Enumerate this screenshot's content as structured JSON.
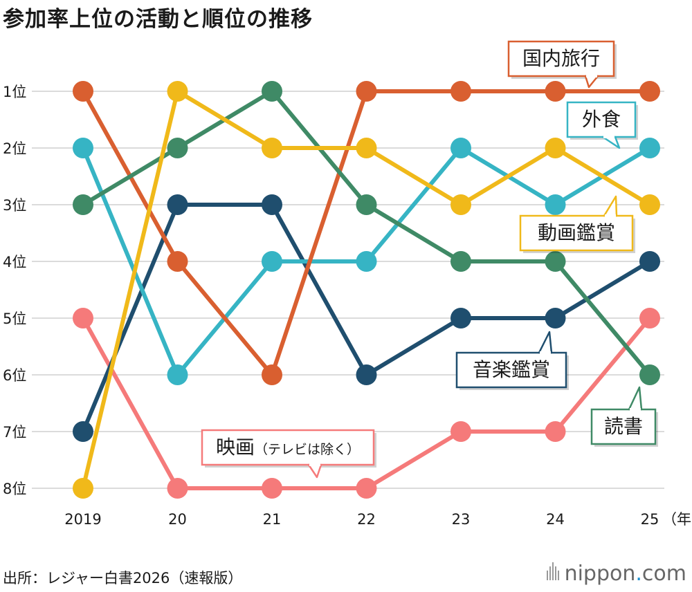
{
  "title": "参加率上位の活動と順位の推移",
  "source": "出所：レジャー白書2026（速報版）",
  "brand": {
    "name": "nippon",
    "dot": ".",
    "tld": "com"
  },
  "chart_data": {
    "type": "line",
    "title": "参加率上位の活動と順位の推移",
    "x": [
      "2019",
      "20",
      "21",
      "22",
      "23",
      "24",
      "25"
    ],
    "x_unit": "（年）",
    "y_ticks": [
      "1位",
      "2位",
      "3位",
      "4位",
      "5位",
      "6位",
      "7位",
      "8位"
    ],
    "ylim": [
      1,
      8
    ],
    "y_inverted": true,
    "grid": true,
    "series": [
      {
        "name": "国内旅行",
        "color": "#d95f30",
        "values": [
          1,
          4,
          6,
          1,
          1,
          1,
          1
        ]
      },
      {
        "name": "外食",
        "color": "#36b4c4",
        "values": [
          2,
          6,
          4,
          4,
          2,
          3,
          2
        ]
      },
      {
        "name": "動画鑑賞",
        "color": "#f0b91a",
        "values": [
          8,
          1,
          2,
          2,
          3,
          2,
          3
        ]
      },
      {
        "name": "音楽鑑賞",
        "color": "#1f4e6e",
        "values": [
          7,
          3,
          3,
          6,
          5,
          5,
          4
        ]
      },
      {
        "name": "読書",
        "color": "#3f8a66",
        "values": [
          3,
          2,
          1,
          3,
          4,
          4,
          6
        ]
      },
      {
        "name": "映画",
        "name_note": "（テレビは除く）",
        "color": "#f57a7a",
        "values": [
          5,
          8,
          8,
          8,
          7,
          7,
          5
        ]
      }
    ]
  }
}
